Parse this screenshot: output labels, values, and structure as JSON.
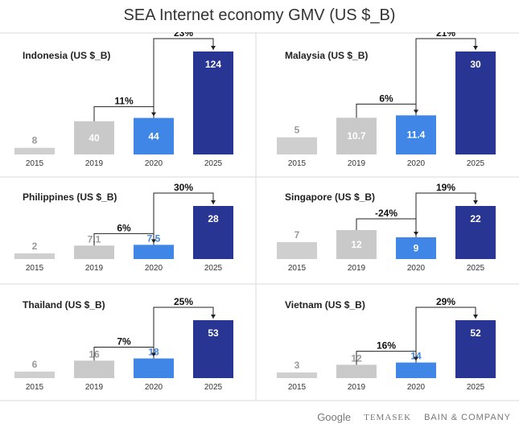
{
  "title": "SEA Internet economy GMV (US $_B)",
  "colors": {
    "y2015": "#cfcfcf",
    "y2019": "#c9c9c9",
    "y2020": "#3f86e6",
    "y2025": "#283593",
    "grid": "#d9d9d9",
    "bracket": "#222222"
  },
  "footer": {
    "google": "Google",
    "temasek": "TEMASEK",
    "bain": "BAIN & COMPANY"
  },
  "chart_data": [
    {
      "type": "bar",
      "title": "Indonesia (US $_B)",
      "categories": [
        "2015",
        "2019",
        "2020",
        "2025"
      ],
      "values": [
        8,
        40,
        44,
        124
      ],
      "value_labels": [
        "8",
        "40",
        "44",
        "124"
      ],
      "growth": [
        "11%",
        "23%"
      ]
    },
    {
      "type": "bar",
      "title": "Malaysia (US $_B)",
      "categories": [
        "2015",
        "2019",
        "2020",
        "2025"
      ],
      "values": [
        5,
        10.7,
        11.4,
        30
      ],
      "value_labels": [
        "5",
        "10.7",
        "11.4",
        "30"
      ],
      "growth": [
        "6%",
        "21%"
      ]
    },
    {
      "type": "bar",
      "title": "Philippines (US $_B)",
      "categories": [
        "2015",
        "2019",
        "2020",
        "2025"
      ],
      "values": [
        2,
        7.1,
        7.5,
        28
      ],
      "value_labels": [
        "2",
        "7.1",
        "7.5",
        "28"
      ],
      "growth": [
        "6%",
        "30%"
      ]
    },
    {
      "type": "bar",
      "title": "Singapore (US $_B)",
      "categories": [
        "2015",
        "2019",
        "2020",
        "2025"
      ],
      "values": [
        7,
        12,
        9,
        22
      ],
      "value_labels": [
        "7",
        "12",
        "9",
        "22"
      ],
      "growth": [
        "-24%",
        "19%"
      ]
    },
    {
      "type": "bar",
      "title": "Thailand (US $_B)",
      "categories": [
        "2015",
        "2019",
        "2020",
        "2025"
      ],
      "values": [
        6,
        16,
        18,
        53
      ],
      "value_labels": [
        "6",
        "16",
        "18",
        "53"
      ],
      "growth": [
        "7%",
        "25%"
      ]
    },
    {
      "type": "bar",
      "title": "Vietnam (US $_B)",
      "categories": [
        "2015",
        "2019",
        "2020",
        "2025"
      ],
      "values": [
        3,
        12,
        14,
        52
      ],
      "value_labels": [
        "3",
        "12",
        "14",
        "52"
      ],
      "growth": [
        "16%",
        "29%"
      ]
    }
  ]
}
